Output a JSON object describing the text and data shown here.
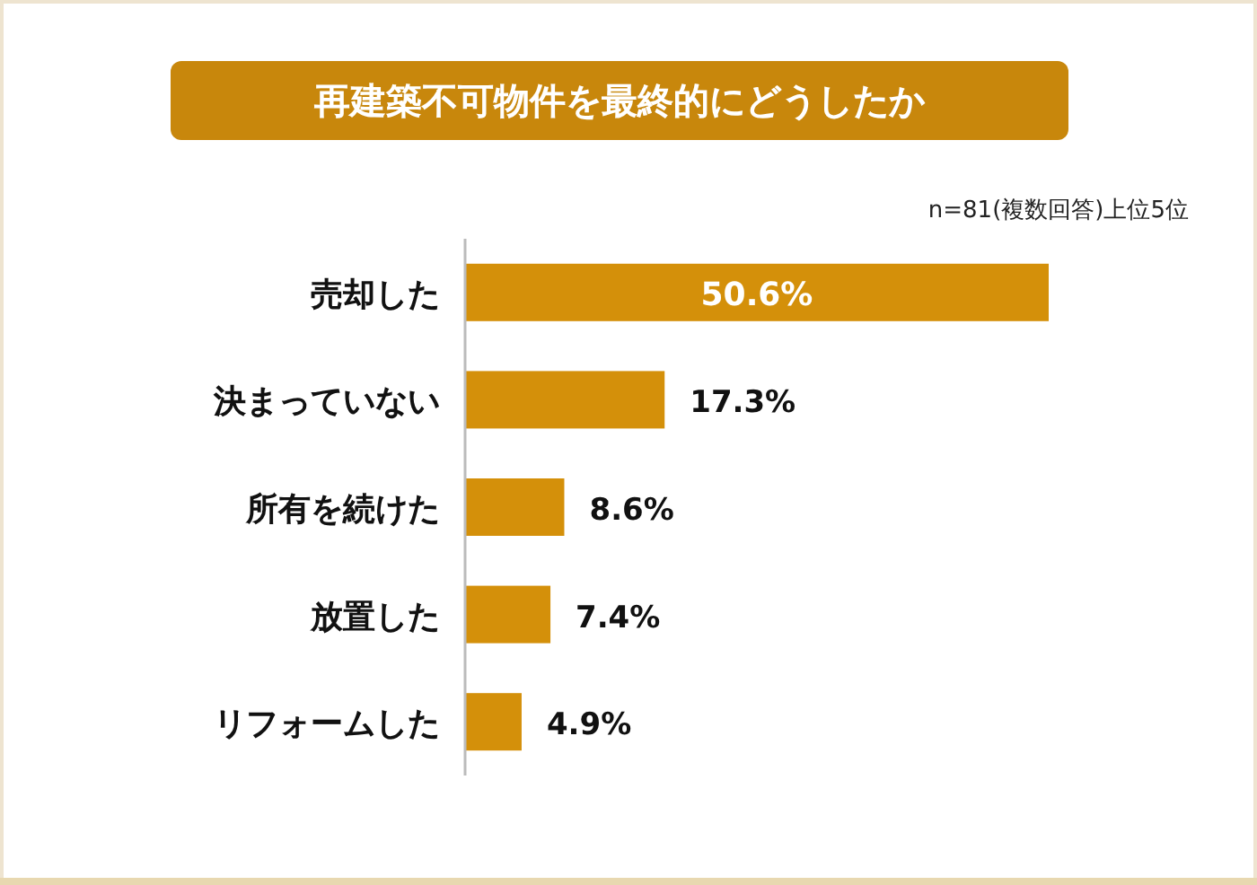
{
  "chart_data": {
    "type": "bar",
    "orientation": "horizontal",
    "title": "再建築不可物件を最終的にどうしたか",
    "annotations": [
      "n=81(複数回答)上位5位"
    ],
    "categories": [
      "売却した",
      "決まっていない",
      "所有を続けた",
      "放置した",
      "リフォームした"
    ],
    "values": [
      50.6,
      17.3,
      8.6,
      7.4,
      4.9
    ],
    "value_labels": [
      "50.6%",
      "17.3%",
      "8.6%",
      "7.4%",
      "4.9%"
    ],
    "color": "#d4900a"
  }
}
